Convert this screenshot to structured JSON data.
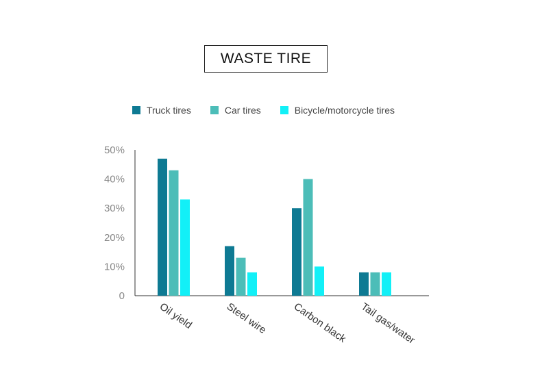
{
  "chart_data": {
    "type": "bar",
    "title": "WASTE TIRE",
    "categories": [
      "Oil yield",
      "Steel wire",
      "Carbon black",
      "Tail gas/water"
    ],
    "series": [
      {
        "name": "Truck tires",
        "color": "#0e7a93",
        "values": [
          47,
          17,
          30,
          8
        ]
      },
      {
        "name": "Car tires",
        "color": "#4cbdb8",
        "values": [
          43,
          13,
          40,
          8
        ]
      },
      {
        "name": "Bicycle/motorcycle tires",
        "color": "#12f0f7",
        "values": [
          33,
          8,
          10,
          8
        ]
      }
    ],
    "ylim": [
      0,
      50
    ],
    "yticks": [
      {
        "value": 0,
        "label": "0"
      },
      {
        "value": 10,
        "label": "10%"
      },
      {
        "value": 20,
        "label": "20%"
      },
      {
        "value": 30,
        "label": "30%"
      },
      {
        "value": 40,
        "label": "40%"
      },
      {
        "value": 50,
        "label": "50%"
      }
    ],
    "grid": false,
    "legend_position": "top"
  }
}
